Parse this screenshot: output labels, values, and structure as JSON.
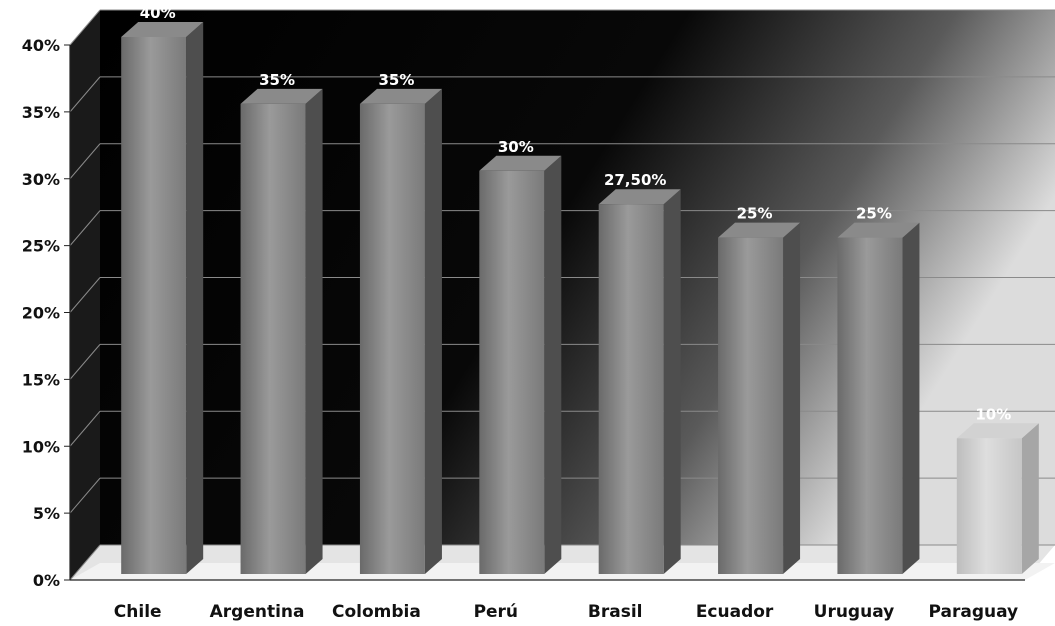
{
  "chart_data": {
    "type": "bar",
    "title": "",
    "xlabel": "",
    "ylabel": "",
    "categories": [
      "Chile",
      "Argentina",
      "Colombia",
      "Perú",
      "Brasil",
      "Ecuador",
      "Uruguay",
      "Paraguay"
    ],
    "values": [
      40,
      35,
      35,
      30,
      27.5,
      25,
      25,
      10
    ],
    "data_labels": [
      "40%",
      "35%",
      "35%",
      "30%",
      "27,50%",
      "25%",
      "25%",
      "10%"
    ],
    "ylim": [
      0,
      40
    ],
    "yticks": [
      0,
      5,
      10,
      15,
      20,
      25,
      30,
      35,
      40
    ],
    "ytick_labels": [
      "0%",
      "5%",
      "10%",
      "15%",
      "20%",
      "25%",
      "30%",
      "35%",
      "40%"
    ],
    "grid": true,
    "legend": "none",
    "style": "3d-column",
    "colors": {
      "bar": "#7d7d7d",
      "highlight_bar": "#c8c8c8",
      "highlight_category": "Paraguay",
      "background_dark": "#000000",
      "background_light": "#d4d4d4"
    }
  }
}
